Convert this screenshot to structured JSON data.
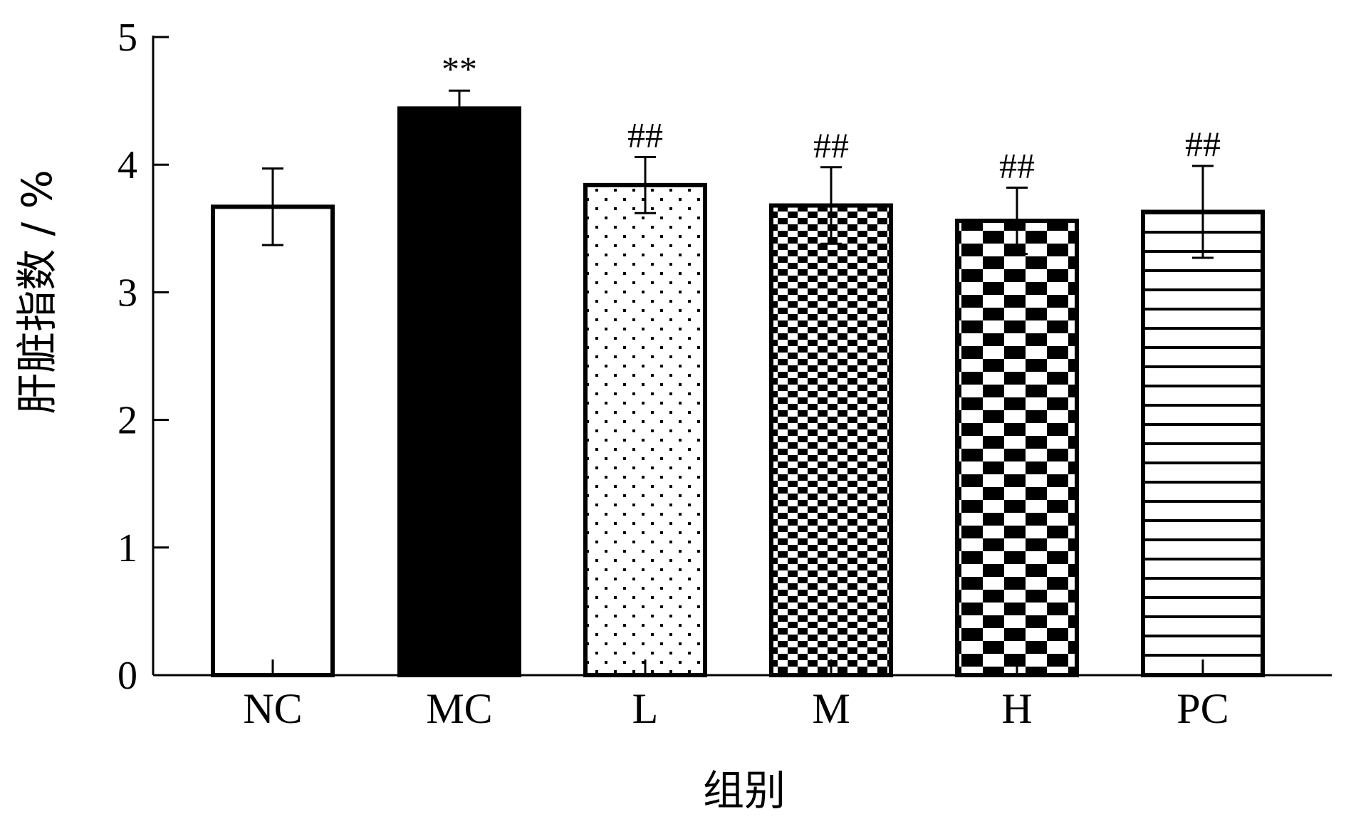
{
  "chart_data": {
    "type": "bar",
    "title": "",
    "xlabel": "组别",
    "ylabel": "肝脏指数 / %",
    "categories": [
      "NC",
      "MC",
      "L",
      "M",
      "H",
      "PC"
    ],
    "values": [
      3.67,
      4.44,
      3.84,
      3.68,
      3.56,
      3.63
    ],
    "errors": [
      0.3,
      0.14,
      0.22,
      0.3,
      0.26,
      0.36
    ],
    "significance": [
      "",
      "**",
      "##",
      "##",
      "##",
      "##"
    ],
    "patterns": [
      "white",
      "black",
      "dots",
      "small-checker",
      "large-checker",
      "horizontal-stripes"
    ],
    "ylim": [
      0,
      5
    ],
    "yticks": [
      0,
      1,
      2,
      3,
      4,
      5
    ],
    "grid": false,
    "legend": "none"
  }
}
